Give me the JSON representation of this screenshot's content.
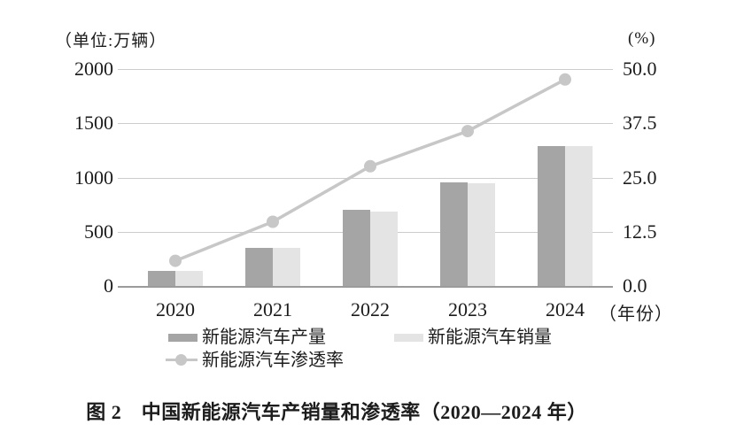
{
  "colors": {
    "production_bar": "#a5a5a5",
    "sales_bar": "#e4e4e4",
    "penetration_line": "#c7c7c7",
    "gridline": "#cccccc",
    "axis_line": "#9b9b9b",
    "text": "#1c1c1c"
  },
  "chart_data": {
    "type": "bar",
    "subtype": "grouped-bars-with-line-overlay",
    "title": "图 2　中国新能源汽车产销量和渗透率（2020—2024 年）",
    "categories": [
      "2020",
      "2021",
      "2022",
      "2023",
      "2024"
    ],
    "series": [
      {
        "name": "新能源汽车产量",
        "type": "bar",
        "axis": "left",
        "values": [
          136.6,
          354.5,
          705.8,
          958.7,
          1288.8
        ]
      },
      {
        "name": "新能源汽车销量",
        "type": "bar",
        "axis": "left",
        "values": [
          136.7,
          352.1,
          688.7,
          949.5,
          1286.6
        ]
      },
      {
        "name": "新能源汽车渗透率",
        "type": "line",
        "axis": "right",
        "values": [
          5.8,
          14.8,
          27.6,
          35.7,
          47.6
        ]
      }
    ],
    "left_axis": {
      "unit_label": "（单位:万辆）",
      "ticks": [
        "2000",
        "1500",
        "1000",
        "500",
        "0"
      ],
      "range": [
        0,
        2000
      ]
    },
    "right_axis": {
      "unit_label": "(%)",
      "ticks": [
        "50.0",
        "37.5",
        "25.0",
        "12.5",
        "0.0"
      ],
      "range": [
        0,
        50
      ]
    },
    "x_axis_suffix": "（年份）",
    "grid": true,
    "legend_position": "bottom"
  },
  "caption": "图 2　中国新能源汽车产销量和渗透率（2020—2024 年）"
}
